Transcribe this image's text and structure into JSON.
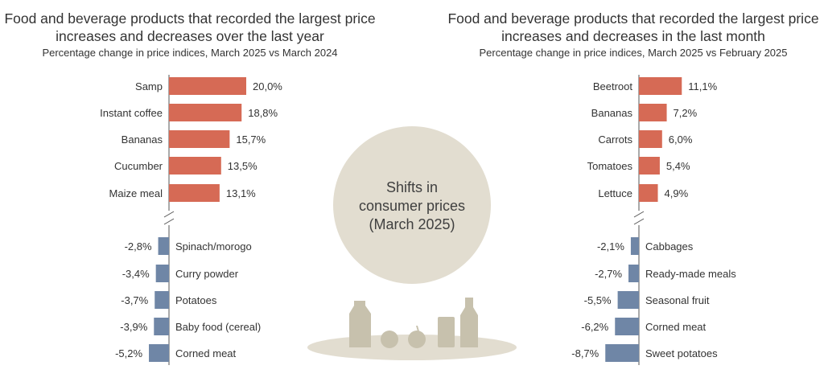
{
  "center_label": [
    "Shifts in",
    "consumer prices",
    "(March 2025)"
  ],
  "colors": {
    "increase": "#d66a55",
    "decrease": "#6f86a6",
    "circle": "#e2ddd0",
    "grocery": "#c7c1ad",
    "axis": "#555555"
  },
  "chart_data": [
    {
      "type": "bar",
      "title": "Food and beverage products that recorded the largest price increases and decreases over the last year",
      "subtitle": "Percentage change in price indices, March 2025 vs March 2024",
      "increases": {
        "categories": [
          "Samp",
          "Instant coffee",
          "Bananas",
          "Cucumber",
          "Maize meal"
        ],
        "values": [
          20.0,
          18.8,
          15.7,
          13.5,
          13.1
        ],
        "labels": [
          "20,0%",
          "18,8%",
          "15,7%",
          "13,5%",
          "13,1%"
        ]
      },
      "decreases": {
        "categories": [
          "Spinach/morogo",
          "Curry powder",
          "Potatoes",
          "Baby food (cereal)",
          "Corned meat"
        ],
        "values": [
          -2.8,
          -3.4,
          -3.7,
          -3.9,
          -5.2
        ],
        "labels": [
          "-2,8%",
          "-3,4%",
          "-3,7%",
          "-3,9%",
          "-5,2%"
        ]
      },
      "axis_break": true
    },
    {
      "type": "bar",
      "title": "Food and beverage products that recorded the largest price increases and decreases in the last month",
      "subtitle": "Percentage change in price indices, March 2025 vs February 2025",
      "increases": {
        "categories": [
          "Beetroot",
          "Bananas",
          "Carrots",
          "Tomatoes",
          "Lettuce"
        ],
        "values": [
          11.1,
          7.2,
          6.0,
          5.4,
          4.9
        ],
        "labels": [
          "11,1%",
          "7,2%",
          "6,0%",
          "5,4%",
          "4,9%"
        ]
      },
      "decreases": {
        "categories": [
          "Cabbages",
          "Ready-made meals",
          "Seasonal fruit",
          "Corned meat",
          "Sweet potatoes"
        ],
        "values": [
          -2.1,
          -2.7,
          -5.5,
          -6.2,
          -8.7
        ],
        "labels": [
          "-2,1%",
          "-2,7%",
          "-5,5%",
          "-6,2%",
          "-8,7%"
        ]
      },
      "axis_break": true
    }
  ]
}
